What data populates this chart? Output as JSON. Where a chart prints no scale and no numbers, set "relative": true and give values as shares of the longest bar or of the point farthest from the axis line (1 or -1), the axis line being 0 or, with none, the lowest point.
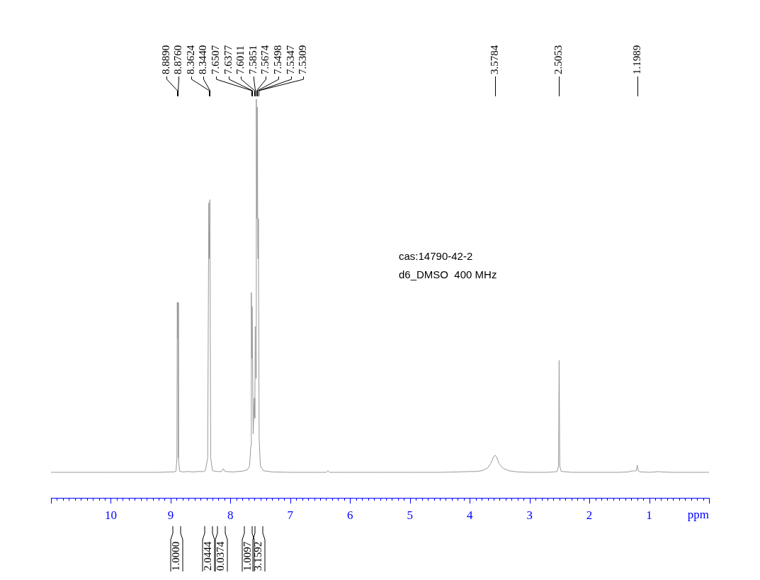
{
  "chart_data": {
    "type": "line",
    "relative": true,
    "xlabel": "ppm",
    "color": "#999999",
    "xlim": [
      11,
      0
    ],
    "xticks": [
      {
        "value": 10.9,
        "label": null
      },
      {
        "value": 10.8,
        "label": null
      },
      {
        "value": 10.7,
        "label": null
      },
      {
        "value": 10.6,
        "label": null
      },
      {
        "value": 10.5,
        "label": null
      },
      {
        "value": 10.4,
        "label": null
      },
      {
        "value": 10.3,
        "label": null
      },
      {
        "value": 10.2,
        "label": null
      },
      {
        "value": 10.1,
        "label": null
      },
      10,
      {
        "value": 9.9,
        "label": null
      },
      {
        "value": 9.8,
        "label": null
      },
      {
        "value": 9.7,
        "label": null
      },
      {
        "value": 9.6,
        "label": null
      },
      {
        "value": 9.5,
        "label": null
      },
      {
        "value": 9.4,
        "label": null
      },
      {
        "value": 9.3,
        "label": null
      },
      {
        "value": 9.2,
        "label": null
      },
      {
        "value": 9.1,
        "label": null
      },
      9,
      {
        "value": 8.9,
        "label": null
      },
      {
        "value": 8.8,
        "label": null
      },
      {
        "value": 8.7,
        "label": null
      },
      {
        "value": 8.6,
        "label": null
      },
      {
        "value": 8.5,
        "label": null
      },
      {
        "value": 8.4,
        "label": null
      },
      {
        "value": 8.3,
        "label": null
      },
      {
        "value": 8.2,
        "label": null
      },
      {
        "value": 8.1,
        "label": null
      },
      8,
      {
        "value": 7.9,
        "label": null
      },
      {
        "value": 7.8,
        "label": null
      },
      {
        "value": 7.7,
        "label": null
      },
      {
        "value": 7.6,
        "label": null
      },
      {
        "value": 7.5,
        "label": null
      },
      {
        "value": 7.4,
        "label": null
      },
      {
        "value": 7.3,
        "label": null
      },
      {
        "value": 7.2,
        "label": null
      },
      {
        "value": 7.1,
        "label": null
      },
      7,
      {
        "value": 6.9,
        "label": null
      },
      {
        "value": 6.8,
        "label": null
      },
      {
        "value": 6.7,
        "label": null
      },
      {
        "value": 6.6,
        "label": null
      },
      {
        "value": 6.5,
        "label": null
      },
      {
        "value": 6.4,
        "label": null
      },
      {
        "value": 6.3,
        "label": null
      },
      {
        "value": 6.2,
        "label": null
      },
      {
        "value": 6.1,
        "label": null
      },
      6,
      {
        "value": 5.9,
        "label": null
      },
      {
        "value": 5.8,
        "label": null
      },
      {
        "value": 5.7,
        "label": null
      },
      {
        "value": 5.6,
        "label": null
      },
      {
        "value": 5.5,
        "label": null
      },
      {
        "value": 5.4,
        "label": null
      },
      {
        "value": 5.3,
        "label": null
      },
      {
        "value": 5.2,
        "label": null
      },
      {
        "value": 5.1,
        "label": null
      },
      5,
      {
        "value": 4.9,
        "label": null
      },
      {
        "value": 4.8,
        "label": null
      },
      {
        "value": 4.7,
        "label": null
      },
      {
        "value": 4.6,
        "label": null
      },
      {
        "value": 4.5,
        "label": null
      },
      {
        "value": 4.4,
        "label": null
      },
      {
        "value": 4.3,
        "label": null
      },
      {
        "value": 4.2,
        "label": null
      },
      {
        "value": 4.1,
        "label": null
      },
      4,
      {
        "value": 3.9,
        "label": null
      },
      {
        "value": 3.8,
        "label": null
      },
      {
        "value": 3.7,
        "label": null
      },
      {
        "value": 3.6,
        "label": null
      },
      {
        "value": 3.5,
        "label": null
      },
      {
        "value": 3.4,
        "label": null
      },
      {
        "value": 3.3,
        "label": null
      },
      {
        "value": 3.2,
        "label": null
      },
      {
        "value": 3.1,
        "label": null
      },
      3,
      {
        "value": 2.9,
        "label": null
      },
      {
        "value": 2.8,
        "label": null
      },
      {
        "value": 2.7,
        "label": null
      },
      {
        "value": 2.6,
        "label": null
      },
      {
        "value": 2.5,
        "label": null
      },
      {
        "value": 2.4,
        "label": null
      },
      {
        "value": 2.3,
        "label": null
      },
      {
        "value": 2.2,
        "label": null
      },
      {
        "value": 2.1,
        "label": null
      },
      2,
      {
        "value": 1.9,
        "label": null
      },
      {
        "value": 1.8,
        "label": null
      },
      {
        "value": 1.7,
        "label": null
      },
      {
        "value": 1.6,
        "label": null
      },
      {
        "value": 1.5,
        "label": null
      },
      {
        "value": 1.4,
        "label": null
      },
      {
        "value": 1.3,
        "label": null
      },
      {
        "value": 1.2,
        "label": null
      },
      {
        "value": 1.1,
        "label": null
      },
      1,
      {
        "value": 0.9,
        "label": null
      },
      {
        "value": 0.8,
        "label": null
      },
      {
        "value": 0.7,
        "label": null
      },
      {
        "value": 0.6,
        "label": null
      },
      {
        "value": 0.5,
        "label": null
      },
      {
        "value": 0.4,
        "label": null
      },
      {
        "value": 0.3,
        "label": null
      },
      {
        "value": 0.2,
        "label": null
      },
      {
        "value": 0.1,
        "label": null
      }
    ],
    "x": [
      11,
      10.5,
      10,
      9.5,
      9.2,
      9.0,
      8.95,
      8.91,
      8.895,
      8.889,
      8.882,
      8.876,
      8.87,
      8.85,
      8.8,
      8.7,
      8.62,
      8.55,
      8.45,
      8.42,
      8.38,
      8.3624,
      8.353,
      8.344,
      8.33,
      8.3,
      8.22,
      8.15,
      8.12,
      8.09,
      7.95,
      7.8,
      7.72,
      7.68,
      7.66,
      7.6507,
      7.644,
      7.6377,
      7.62,
      7.6011,
      7.593,
      7.5851,
      7.576,
      7.5674,
      7.558,
      7.5498,
      7.542,
      7.5347,
      7.5309,
      7.52,
      7.5,
      7.45,
      7.4,
      7.3,
      7.0,
      6.6,
      6.4,
      6.37,
      6.34,
      6.0,
      5.5,
      5.0,
      4.5,
      4.2,
      4.0,
      3.9,
      3.8,
      3.7,
      3.65,
      3.6,
      3.5784,
      3.55,
      3.51,
      3.45,
      3.35,
      3.2,
      3.0,
      2.7,
      2.6,
      2.54,
      2.515,
      2.5053,
      2.495,
      2.47,
      2.44,
      2.3,
      2.0,
      1.8,
      1.5,
      1.35,
      1.28,
      1.26,
      1.24,
      1.22,
      1.1989,
      1.18,
      1.15,
      1.1,
      1.0,
      0.9,
      0.85,
      0.8,
      0.6,
      0.3,
      0
    ],
    "values": [
      0.064,
      0.064,
      0.064,
      0.064,
      0.064,
      0.065,
      0.065,
      0.067,
      0.1,
      0.49,
      0.4,
      0.49,
      0.1,
      0.067,
      0.065,
      0.066,
      0.065,
      0.066,
      0.066,
      0.068,
      0.1,
      0.74,
      0.6,
      0.748,
      0.1,
      0.068,
      0.066,
      0.066,
      0.073,
      0.066,
      0.065,
      0.067,
      0.07,
      0.08,
      0.13,
      0.515,
      0.35,
      0.48,
      0.16,
      0.25,
      0.2,
      0.43,
      0.3,
      1,
      0.7,
      0.98,
      0.6,
      0.7,
      0.66,
      0.15,
      0.08,
      0.068,
      0.067,
      0.065,
      0.064,
      0.064,
      0.064,
      0.068,
      0.064,
      0.064,
      0.064,
      0.064,
      0.064,
      0.065,
      0.066,
      0.066,
      0.068,
      0.075,
      0.086,
      0.103,
      0.107,
      0.102,
      0.086,
      0.075,
      0.068,
      0.065,
      0.064,
      0.064,
      0.065,
      0.066,
      0.08,
      0.345,
      0.08,
      0.066,
      0.066,
      0.064,
      0.064,
      0.064,
      0.064,
      0.065,
      0.068,
      0.066,
      0.069,
      0.067,
      0.082,
      0.067,
      0.065,
      0.065,
      0.064,
      0.065,
      0.066,
      0.065,
      0.064,
      0.064,
      0.064
    ],
    "annotations": [
      {
        "text": "8.8890",
        "x": 8.889
      },
      {
        "text": "8.8760",
        "x": 8.876
      },
      {
        "text": "8.3624",
        "x": 8.3624
      },
      {
        "text": "8.3440",
        "x": 8.344
      },
      {
        "text": "7.6507",
        "x": 7.6507
      },
      {
        "text": "7.6377",
        "x": 7.6377
      },
      {
        "text": "7.6011",
        "x": 7.6011
      },
      {
        "text": "7.5851",
        "x": 7.5851
      },
      {
        "text": "7.5674",
        "x": 7.5674
      },
      {
        "text": "7.5498",
        "x": 7.5498
      },
      {
        "text": "7.5347",
        "x": 7.5347
      },
      {
        "text": "7.5309",
        "x": 7.5309
      },
      {
        "text": "3.5784",
        "x": 3.5784
      },
      {
        "text": "2.5053",
        "x": 2.5053
      },
      {
        "text": "1.1989",
        "x": 1.1989
      },
      "1.0000",
      "2.0444",
      "0.0374",
      "1.0097",
      "3.1592",
      "cas:14790-42-2",
      "d6_DMSO  400 MHz"
    ]
  }
}
